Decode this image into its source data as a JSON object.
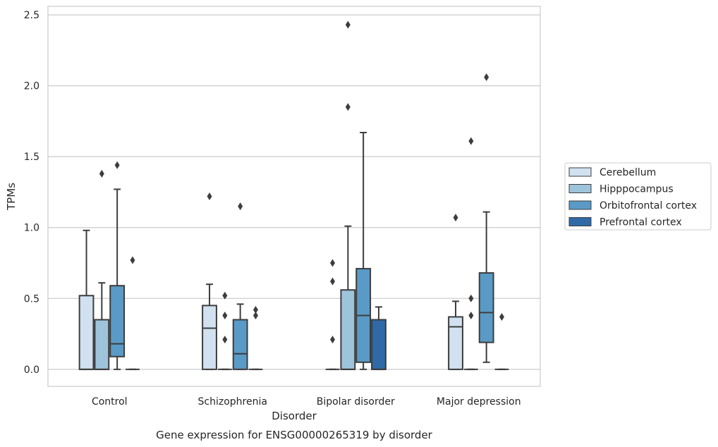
{
  "chart_data": {
    "type": "boxplot",
    "caption": "Gene expression for ENSG00000265319 by disorder",
    "xlabel": "Disorder",
    "ylabel": "TPMs",
    "ylim": [
      -0.12,
      2.56
    ],
    "yticks": [
      0.0,
      0.5,
      1.0,
      1.5,
      2.0,
      2.5
    ],
    "ytick_labels": [
      "0.0",
      "0.5",
      "1.0",
      "1.5",
      "2.0",
      "2.5"
    ],
    "grid": "horizontal",
    "legend_position": "right",
    "categories": [
      "Control",
      "Schizophrenia",
      "Bipolar disorder",
      "Major depression"
    ],
    "series": [
      {
        "name": "Cerebellum",
        "color": "#d1e1f0",
        "boxes": [
          {
            "whislo": 0.0,
            "q1": 0.0,
            "med": 0.0,
            "q3": 0.52,
            "whishi": 0.98,
            "fliers": []
          },
          {
            "whislo": 0.0,
            "q1": 0.0,
            "med": 0.29,
            "q3": 0.45,
            "whishi": 0.6,
            "fliers": [
              1.22
            ]
          },
          {
            "whislo": 0.0,
            "q1": 0.0,
            "med": 0.0,
            "q3": 0.0,
            "whishi": 0.0,
            "fliers": [
              0.75,
              0.62,
              0.21
            ]
          },
          {
            "whislo": 0.0,
            "q1": 0.0,
            "med": 0.3,
            "q3": 0.37,
            "whishi": 0.48,
            "fliers": [
              1.07
            ]
          }
        ]
      },
      {
        "name": "Hipppocampus",
        "color": "#9ec4db",
        "boxes": [
          {
            "whislo": 0.0,
            "q1": 0.0,
            "med": 0.0,
            "q3": 0.35,
            "whishi": 0.61,
            "fliers": [
              1.38
            ]
          },
          {
            "whislo": 0.0,
            "q1": 0.0,
            "med": 0.0,
            "q3": 0.0,
            "whishi": 0.0,
            "fliers": [
              0.52,
              0.38,
              0.21
            ]
          },
          {
            "whislo": 0.0,
            "q1": 0.0,
            "med": 0.0,
            "q3": 0.56,
            "whishi": 1.01,
            "fliers": [
              2.43,
              1.85
            ]
          },
          {
            "whislo": 0.0,
            "q1": 0.0,
            "med": 0.0,
            "q3": 0.0,
            "whishi": 0.0,
            "fliers": [
              1.61,
              0.5,
              0.38
            ]
          }
        ]
      },
      {
        "name": "Orbitofrontal cortex",
        "color": "#5a9ac6",
        "boxes": [
          {
            "whislo": 0.0,
            "q1": 0.09,
            "med": 0.18,
            "q3": 0.59,
            "whishi": 1.27,
            "fliers": [
              1.44
            ]
          },
          {
            "whislo": 0.0,
            "q1": 0.0,
            "med": 0.11,
            "q3": 0.35,
            "whishi": 0.46,
            "fliers": [
              1.15
            ]
          },
          {
            "whislo": 0.0,
            "q1": 0.05,
            "med": 0.38,
            "q3": 0.71,
            "whishi": 1.67,
            "fliers": []
          },
          {
            "whislo": 0.05,
            "q1": 0.19,
            "med": 0.4,
            "q3": 0.68,
            "whishi": 1.11,
            "fliers": [
              2.06
            ]
          }
        ]
      },
      {
        "name": "Prefrontal cortex",
        "color": "#2f6aa6",
        "boxes": [
          {
            "whislo": 0.0,
            "q1": 0.0,
            "med": 0.0,
            "q3": 0.0,
            "whishi": 0.0,
            "fliers": [
              0.77
            ]
          },
          {
            "whislo": 0.0,
            "q1": 0.0,
            "med": 0.0,
            "q3": 0.0,
            "whishi": 0.0,
            "fliers": [
              0.42,
              0.38
            ]
          },
          {
            "whislo": 0.0,
            "q1": 0.0,
            "med": 0.0,
            "q3": 0.35,
            "whishi": 0.44,
            "fliers": []
          },
          {
            "whislo": 0.0,
            "q1": 0.0,
            "med": 0.0,
            "q3": 0.0,
            "whishi": 0.0,
            "fliers": [
              0.37
            ]
          }
        ]
      }
    ]
  }
}
